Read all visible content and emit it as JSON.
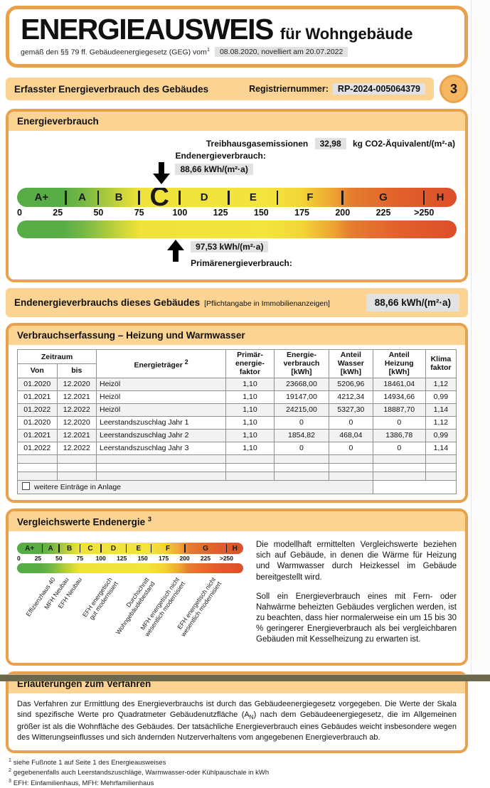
{
  "header": {
    "title": "ENERGIEAUSWEIS",
    "subtitle": "für Wohngebäude",
    "law_prefix": "gemäß den §§ 79 ff. Gebäudeenergiegesetz (GEG) vom",
    "law_sup": "1",
    "law_date": "08.08.2020, novelliert am 20.07.2022",
    "page_number": "3"
  },
  "section_bar": {
    "title": "Erfasster Energieverbrauch des Gebäudes",
    "reg_label": "Registriernummer:",
    "reg_value": "RP-2024-005064379"
  },
  "energy": {
    "header": "Energieverbrauch",
    "ghg_label": "Treibhausgasemissionen",
    "ghg_value": "32,98",
    "ghg_unit": "kg CO2-Äquivalent/(m²·a)",
    "end_label": "Endenergieverbrauch:",
    "end_value": "88,66 kWh/(m²·a)",
    "primary_value": "97,53 kWh/(m²·a)",
    "primary_label": "Primärenergieverbrauch:"
  },
  "scale": {
    "max": 270,
    "current_class": "C",
    "end_value_num": 88.66,
    "primary_value_num": 97.53,
    "classes": [
      {
        "letter": "A+",
        "from": 0,
        "to": 30
      },
      {
        "letter": "A",
        "from": 30,
        "to": 50
      },
      {
        "letter": "B",
        "from": 50,
        "to": 75
      },
      {
        "letter": "C",
        "from": 75,
        "to": 100
      },
      {
        "letter": "D",
        "from": 100,
        "to": 130
      },
      {
        "letter": "E",
        "from": 130,
        "to": 160
      },
      {
        "letter": "F",
        "from": 160,
        "to": 200
      },
      {
        "letter": "G",
        "from": 200,
        "to": 250
      },
      {
        "letter": "H",
        "from": 250,
        "to": 270
      }
    ],
    "ticks": [
      {
        "label": "0",
        "value": 0
      },
      {
        "label": "25",
        "value": 25
      },
      {
        "label": "50",
        "value": 50
      },
      {
        "label": "75",
        "value": 75
      },
      {
        "label": "100",
        "value": 100
      },
      {
        "label": "125",
        "value": 125
      },
      {
        "label": "150",
        "value": 150
      },
      {
        "label": "175",
        "value": 175
      },
      {
        "label": "200",
        "value": 200
      },
      {
        "label": "225",
        "value": 225
      },
      {
        "label": ">250",
        "value": 250
      }
    ]
  },
  "end_row": {
    "title": "Endenergieverbrauchs dieses Gebäudes",
    "note": "[Pflichtangabe in Immobilienanzeigen]",
    "value": "88,66 kWh/(m²·a)"
  },
  "table_section": {
    "header": "Verbrauchserfassung – Heizung und Warmwasser",
    "columns": {
      "zeitraum": "Zeitraum",
      "von": "Von",
      "bis": "bis",
      "traeger": "Energieträger",
      "traeger_sup": "2",
      "pef": "Primär-\nenergie-\nfaktor",
      "verbrauch": "Energie-\nverbrauch\n[kWh]",
      "wasser": "Anteil\nWasser\n[kWh]",
      "heizung": "Anteil\nHeizung\n[kWh]",
      "klima": "Klima\nfaktor"
    },
    "rows": [
      [
        "01.2020",
        "12.2020",
        "Heizöl",
        "1,10",
        "23668,00",
        "5206,96",
        "18461,04",
        "1,12"
      ],
      [
        "01.2021",
        "12.2021",
        "Heizöl",
        "1,10",
        "19147,00",
        "4212,34",
        "14934,66",
        "0,99"
      ],
      [
        "01.2022",
        "12.2022",
        "Heizöl",
        "1,10",
        "24215,00",
        "5327,30",
        "18887,70",
        "1,14"
      ],
      [
        "01.2020",
        "12.2020",
        "Leerstandszuschlag Jahr 1",
        "1,10",
        "0",
        "0",
        "0",
        "1,12"
      ],
      [
        "01.2021",
        "12.2021",
        "Leerstandszuschlag Jahr 2",
        "1,10",
        "1854,82",
        "468,04",
        "1386,78",
        "0,99"
      ],
      [
        "01.2022",
        "12.2022",
        "Leerstandszuschlag Jahr 3",
        "1,10",
        "0",
        "0",
        "0",
        "1,14"
      ]
    ],
    "empty_row_count": 3,
    "footer_checkbox_label": "weitere Einträge in Anlage"
  },
  "compare": {
    "header": "Vergleichswerte Endenergie",
    "header_sup": "3",
    "labels": [
      {
        "text": "Effizienzhaus 40",
        "value": 40
      },
      {
        "text": "MFH Neubau",
        "value": 56
      },
      {
        "text": "EFH Neubau",
        "value": 72
      },
      {
        "text": "EFH energetisch\ngut modernisiert",
        "value": 108
      },
      {
        "text": "Durchschnitt\nWohngebäudebestand",
        "value": 152
      },
      {
        "text": "MFH energetisch nicht\nwesentlich modernisiert",
        "value": 188
      },
      {
        "text": "EFH energetisch nicht\nwesentlich modernisiert",
        "value": 232
      }
    ],
    "para1": "Die modellhaft ermittelten Vergleichswerte beziehen sich auf Gebäude, in denen die Wärme für Heizung und Warmwasser durch Heizkessel im Gebäude bereitgestellt wird.",
    "para2": "Soll ein Energieverbrauch eines mit Fern- oder Nahwärme beheizten Gebäudes verglichen werden, ist zu beachten, dass hier normalerweise ein um 15 bis 30 % geringerer Energieverbrauch als bei vergleichbaren Gebäuden mit Kesselheizung zu erwarten ist."
  },
  "explain": {
    "header": "Erläuterungen zum Verfahren",
    "text1": "Das Verfahren zur Ermittlung des Energieverbrauchs ist durch das Gebäudeenergiegesetz vorgegeben. Die Werte der Skala sind spezifische Werte pro Quadratmeter Gebäudenutzfläche (A",
    "text_sub": "N",
    "text2": ") nach dem Gebäudeenergiegesetz, die im Allgemeinen größer ist als die Wohnfläche des Gebäudes. Der tatsächliche Energieverbrauch eines Gebäudes weicht insbesondere wegen des Witterungseinflusses und sich ändernden Nutzerverhaltens vom angegebenen Energieverbrauch ab."
  },
  "footnotes": [
    {
      "sup": "1",
      "text": "siehe Fußnote 1 auf Seite 1 des Energieausweises"
    },
    {
      "sup": "2",
      "text": "gegebenenfalls auch Leerstandszuschläge, Warmwasser-oder Kühlpauschale in kWh"
    },
    {
      "sup": "3",
      "text": "EFH: Einfamilienhaus, MFH: Mehrfamilienhaus"
    }
  ],
  "colors": {
    "accent_orange": "#e9a24b",
    "band_orange": "#fbd493",
    "gray_value_box": "#e2e2e2",
    "scale_green": "#57ac45",
    "scale_yellow": "#f3e53c",
    "scale_red": "#dc4e2a",
    "bottom_bar": "#6c684b"
  }
}
